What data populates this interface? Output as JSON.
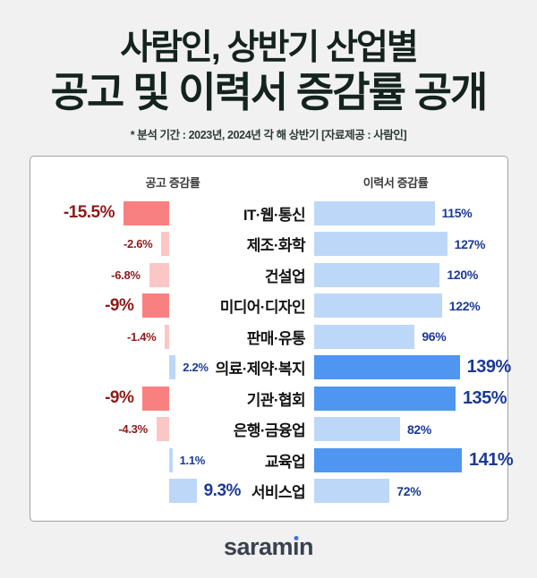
{
  "header": {
    "title_line1": "사람인, 상반기 산업별",
    "title_line2": "공고 및 이력서 증감률 공개",
    "subtitle": "* 분석 기간 : 2023년, 2024년 각 해 상반기  [자료제공 : 사람인]"
  },
  "colors": {
    "background": "#F1F1F2",
    "card_background": "#FFFFFF",
    "card_border": "#A2A2A2",
    "title_text": "#15231E",
    "bar_red": "#F98080",
    "bar_pink": "#FBC6C6",
    "bar_light_blue": "#BDD7F9",
    "bar_blue": "#4E96F0",
    "text_red": "#8E1A1A",
    "text_navy": "#1B3A94",
    "logo_text": "#3A414F",
    "logo_dot_blue": "#3B6FF5"
  },
  "chart_data": {
    "type": "bar",
    "orientation": "horizontal",
    "title": "사람인, 상반기 산업별 공고 및 이력서 증감률 공개",
    "unit": "%",
    "grid": false,
    "legend": "column-headers",
    "categories": [
      "IT·웹·통신",
      "제조·화학",
      "건설업",
      "미디어·디자인",
      "판매·유통",
      "의료·제약·복지",
      "기관·협회",
      "은행·금융업",
      "교육업",
      "서비스업"
    ],
    "series": [
      {
        "name": "공고 증감률",
        "values": [
          -15.5,
          -2.6,
          -6.8,
          -9,
          -1.4,
          2.2,
          -9,
          -4.3,
          1.1,
          9.3
        ],
        "labels": [
          "-15.5%",
          "-2.6%",
          "-6.8%",
          "-9%",
          "-1.4%",
          "2.2%",
          "-9%",
          "-4.3%",
          "1.1%",
          "9.3%"
        ],
        "emphasized": [
          true,
          false,
          false,
          true,
          false,
          false,
          true,
          false,
          false,
          true
        ]
      },
      {
        "name": "이력서 증감률",
        "values": [
          115,
          127,
          120,
          122,
          96,
          139,
          135,
          82,
          141,
          72
        ],
        "labels": [
          "115%",
          "127%",
          "120%",
          "122%",
          "96%",
          "139%",
          "135%",
          "82%",
          "141%",
          "72%"
        ],
        "emphasized": [
          false,
          false,
          false,
          false,
          false,
          true,
          true,
          false,
          true,
          false
        ]
      }
    ]
  },
  "footer": {
    "logo_text": "saramin",
    "logo_pre": "saram",
    "logo_i": "ı",
    "logo_post": "n"
  }
}
